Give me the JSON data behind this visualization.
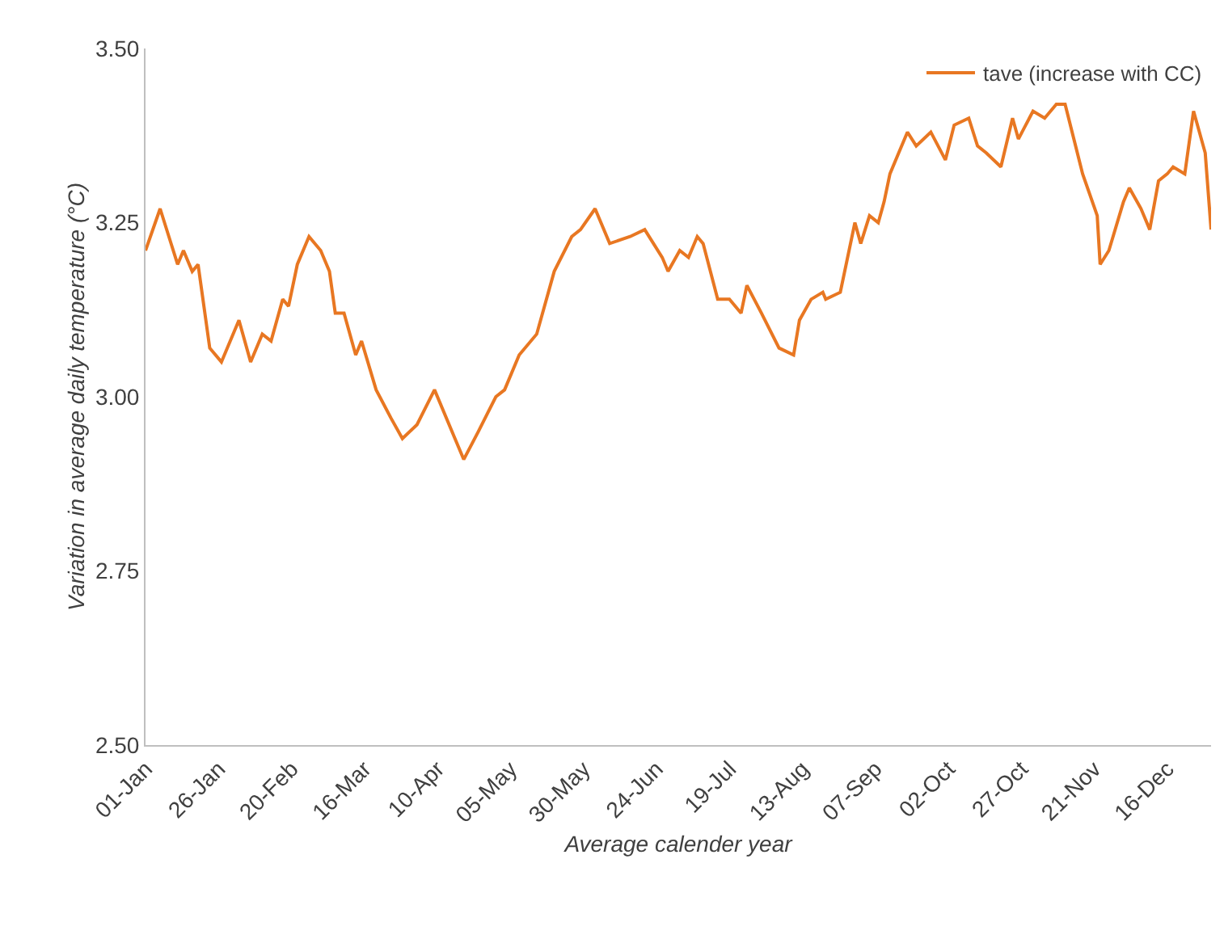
{
  "chart_data": {
    "type": "line",
    "xlabel": "Average calender year",
    "ylabel": "Variation in average daily temperature (°C)",
    "x": [
      "--01-01",
      "--01-06",
      "--01-09",
      "--01-12",
      "--01-14",
      "--01-17",
      "--01-19",
      "--01-23",
      "--01-27",
      "--02-02",
      "--02-06",
      "--02-10",
      "--02-13",
      "--02-17",
      "--02-19",
      "--02-22",
      "--02-26",
      "--03-01",
      "--03-04",
      "--03-06",
      "--03-09",
      "--03-13",
      "--03-15",
      "--03-20",
      "--03-25",
      "--03-29",
      "--04-03",
      "--04-09",
      "--04-16",
      "--04-19",
      "--04-24",
      "--04-30",
      "--05-03",
      "--05-08",
      "--05-14",
      "--05-20",
      "--05-26",
      "--05-29",
      "--06-03",
      "--06-08",
      "--06-15",
      "--06-20",
      "--06-26",
      "--06-28",
      "--07-02",
      "--07-05",
      "--07-08",
      "--07-10",
      "--07-15",
      "--07-19",
      "--07-23",
      "--07-25",
      "--07-30",
      "--08-05",
      "--08-10",
      "--08-12",
      "--08-16",
      "--08-20",
      "--08-21",
      "--08-26",
      "--08-31",
      "--09-02",
      "--09-05",
      "--09-08",
      "--09-10",
      "--09-12",
      "--09-15",
      "--09-18",
      "--09-21",
      "--09-26",
      "--10-01",
      "--10-04",
      "--10-09",
      "--10-12",
      "--10-15",
      "--10-20",
      "--10-24",
      "--10-26",
      "--10-31",
      "--11-04",
      "--11-08",
      "--11-11",
      "--11-14",
      "--11-17",
      "--11-22",
      "--11-23",
      "--11-26",
      "--12-01",
      "--12-03",
      "--12-07",
      "--12-10",
      "--12-13",
      "--12-16",
      "--12-18",
      "--12-22",
      "--12-25",
      "--12-29",
      "--12-31"
    ],
    "series": [
      {
        "name": "tave (increase with CC)",
        "color": "#e87722",
        "values": [
          3.21,
          3.27,
          3.23,
          3.19,
          3.21,
          3.18,
          3.19,
          3.07,
          3.05,
          3.11,
          3.05,
          3.09,
          3.08,
          3.14,
          3.13,
          3.19,
          3.23,
          3.21,
          3.18,
          3.12,
          3.12,
          3.06,
          3.08,
          3.01,
          2.97,
          2.94,
          2.96,
          3.01,
          2.94,
          2.91,
          2.95,
          3.0,
          3.01,
          3.06,
          3.09,
          3.18,
          3.23,
          3.24,
          3.27,
          3.22,
          3.23,
          3.24,
          3.2,
          3.18,
          3.21,
          3.2,
          3.23,
          3.22,
          3.14,
          3.14,
          3.12,
          3.16,
          3.12,
          3.07,
          3.06,
          3.11,
          3.14,
          3.15,
          3.14,
          3.15,
          3.25,
          3.22,
          3.26,
          3.25,
          3.28,
          3.32,
          3.35,
          3.38,
          3.36,
          3.38,
          3.34,
          3.39,
          3.4,
          3.36,
          3.35,
          3.33,
          3.4,
          3.37,
          3.41,
          3.4,
          3.42,
          3.42,
          3.37,
          3.32,
          3.26,
          3.19,
          3.21,
          3.28,
          3.3,
          3.27,
          3.24,
          3.31,
          3.32,
          3.33,
          3.32,
          3.41,
          3.35,
          3.24
        ]
      }
    ],
    "xlim": [
      "--01-01",
      "--12-31"
    ],
    "xticks": [
      {
        "value": "--01-01",
        "label": "01-Jan"
      },
      {
        "value": "--01-26",
        "label": "26-Jan"
      },
      {
        "value": "--02-20",
        "label": "20-Feb"
      },
      {
        "value": "--03-16",
        "label": "16-Mar"
      },
      {
        "value": "--04-10",
        "label": "10-Apr"
      },
      {
        "value": "--05-05",
        "label": "05-May"
      },
      {
        "value": "--05-30",
        "label": "30-May"
      },
      {
        "value": "--06-24",
        "label": "24-Jun"
      },
      {
        "value": "--07-19",
        "label": "19-Jul"
      },
      {
        "value": "--08-13",
        "label": "13-Aug"
      },
      {
        "value": "--09-07",
        "label": "07-Sep"
      },
      {
        "value": "--10-02",
        "label": "02-Oct"
      },
      {
        "value": "--10-27",
        "label": "27-Oct"
      },
      {
        "value": "--11-21",
        "label": "21-Nov"
      },
      {
        "value": "--12-16",
        "label": "16-Dec"
      }
    ],
    "ylim": [
      2.5,
      3.5
    ],
    "yticks": [
      {
        "value": 2.5,
        "label": "2.50"
      },
      {
        "value": 2.75,
        "label": "2.75"
      },
      {
        "value": 3,
        "label": "3.00"
      },
      {
        "value": 3.25,
        "label": "3.25"
      },
      {
        "value": 3.5,
        "label": "3.50"
      }
    ],
    "grid": false,
    "legend": "top right",
    "marker": "none",
    "line_style": "solid"
  }
}
